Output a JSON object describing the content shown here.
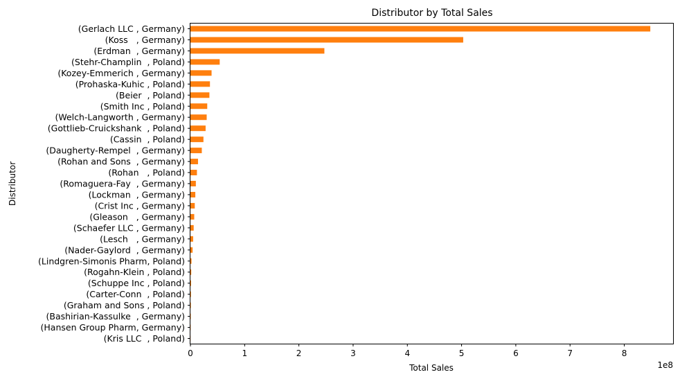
{
  "chart_data": {
    "type": "bar",
    "orientation": "horizontal",
    "title": "Distributor by Total Sales",
    "xlabel": "Total Sales",
    "ylabel": "Distributor",
    "x_scale_label": "1e8",
    "xlim": [
      0,
      8.9
    ],
    "x_ticks": [
      "0",
      "1",
      "2",
      "3",
      "4",
      "5",
      "6",
      "7",
      "8"
    ],
    "grid": false,
    "bar_color": "#ff7f0e",
    "categories": [
      "(Gerlach LLC , Germany)",
      "(Koss   , Germany)",
      "(Erdman  , Germany)",
      "(Stehr-Champlin  , Poland)",
      "(Kozey-Emmerich , Germany)",
      "(Prohaska-Kuhic , Poland)",
      "(Beier  , Poland)",
      "(Smith Inc , Poland)",
      "(Welch-Langworth , Germany)",
      "(Gottlieb-Cruickshank  , Poland)",
      "(Cassin  , Poland)",
      "(Daugherty-Rempel  , Germany)",
      "(Rohan and Sons  , Germany)",
      "(Rohan   , Poland)",
      "(Romaguera-Fay  , Germany)",
      "(Lockman  , Germany)",
      "(Crist Inc , Germany)",
      "(Gleason   , Germany)",
      "(Schaefer LLC , Germany)",
      "(Lesch   , Germany)",
      "(Nader-Gaylord  , Germany)",
      "(Lindgren-Simonis Pharm, Poland)",
      "(Rogahn-Klein , Poland)",
      "(Schuppe Inc , Poland)",
      "(Carter-Conn  , Poland)",
      "(Graham and Sons , Poland)",
      "(Bashirian-Kassulke  , Germany)",
      "(Hansen Group Pharm, Germany)",
      "(Kris LLC  , Poland)"
    ],
    "values": [
      8.48,
      5.03,
      2.47,
      0.54,
      0.39,
      0.36,
      0.35,
      0.31,
      0.3,
      0.28,
      0.24,
      0.21,
      0.14,
      0.12,
      0.1,
      0.09,
      0.08,
      0.07,
      0.06,
      0.05,
      0.04,
      0.02,
      0.015,
      0.012,
      0.01,
      0.008,
      0.006,
      0.004,
      0.002
    ]
  }
}
